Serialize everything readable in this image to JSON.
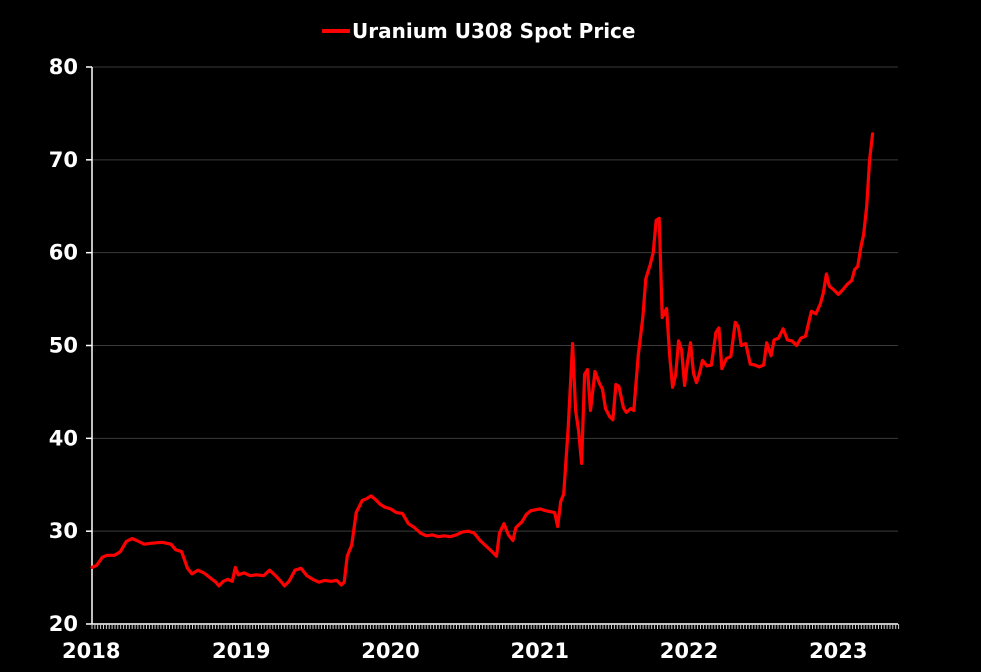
{
  "chart_data": {
    "type": "line",
    "title": "",
    "xlabel": "",
    "ylabel": "",
    "xlim": [
      2018.0,
      2023.4
    ],
    "ylim": [
      20,
      80
    ],
    "yticks": [
      20,
      30,
      40,
      50,
      60,
      70,
      80
    ],
    "xticks": [
      2018,
      2019,
      2020,
      2021,
      2022,
      2023
    ],
    "y_tick_labels": [
      "20",
      "30",
      "40",
      "50",
      "60",
      "70",
      "80"
    ],
    "x_tick_labels": [
      "2018",
      "2019",
      "2020",
      "2021",
      "2022",
      "2023"
    ],
    "grid": true,
    "legend_position": "top-center",
    "series": [
      {
        "name": "Uranium U308 Spot Price",
        "color": "#ff0000",
        "points": [
          [
            2018.0,
            26.1
          ],
          [
            2018.03,
            26.3
          ],
          [
            2018.07,
            27.2
          ],
          [
            2018.1,
            27.4
          ],
          [
            2018.15,
            27.4
          ],
          [
            2018.19,
            27.8
          ],
          [
            2018.23,
            28.9
          ],
          [
            2018.27,
            29.2
          ],
          [
            2018.3,
            29.0
          ],
          [
            2018.35,
            28.6
          ],
          [
            2018.4,
            28.7
          ],
          [
            2018.47,
            28.8
          ],
          [
            2018.53,
            28.6
          ],
          [
            2018.56,
            28.0
          ],
          [
            2018.6,
            27.8
          ],
          [
            2018.64,
            26.0
          ],
          [
            2018.67,
            25.4
          ],
          [
            2018.71,
            25.8
          ],
          [
            2018.75,
            25.5
          ],
          [
            2018.79,
            25.0
          ],
          [
            2018.83,
            24.5
          ],
          [
            2018.85,
            24.1
          ],
          [
            2018.88,
            24.6
          ],
          [
            2018.91,
            24.8
          ],
          [
            2018.94,
            24.6
          ],
          [
            2018.96,
            26.1
          ],
          [
            2018.98,
            25.3
          ],
          [
            2019.02,
            25.5
          ],
          [
            2019.06,
            25.2
          ],
          [
            2019.1,
            25.3
          ],
          [
            2019.15,
            25.2
          ],
          [
            2019.19,
            25.8
          ],
          [
            2019.23,
            25.2
          ],
          [
            2019.27,
            24.5
          ],
          [
            2019.29,
            24.1
          ],
          [
            2019.32,
            24.6
          ],
          [
            2019.36,
            25.8
          ],
          [
            2019.4,
            26.0
          ],
          [
            2019.44,
            25.2
          ],
          [
            2019.48,
            24.8
          ],
          [
            2019.52,
            24.5
          ],
          [
            2019.56,
            24.7
          ],
          [
            2019.6,
            24.6
          ],
          [
            2019.64,
            24.7
          ],
          [
            2019.67,
            24.2
          ],
          [
            2019.69,
            24.5
          ],
          [
            2019.71,
            27.3
          ],
          [
            2019.74,
            28.5
          ],
          [
            2019.77,
            32.0
          ],
          [
            2019.81,
            33.3
          ],
          [
            2019.84,
            33.5
          ],
          [
            2019.87,
            33.8
          ],
          [
            2019.9,
            33.4
          ],
          [
            2019.93,
            32.9
          ],
          [
            2019.96,
            32.6
          ],
          [
            2020.0,
            32.4
          ],
          [
            2020.04,
            32.0
          ],
          [
            2020.08,
            31.9
          ],
          [
            2020.12,
            30.8
          ],
          [
            2020.16,
            30.4
          ],
          [
            2020.2,
            29.8
          ],
          [
            2020.24,
            29.5
          ],
          [
            2020.28,
            29.6
          ],
          [
            2020.32,
            29.4
          ],
          [
            2020.36,
            29.5
          ],
          [
            2020.4,
            29.4
          ],
          [
            2020.44,
            29.6
          ],
          [
            2020.48,
            29.9
          ],
          [
            2020.52,
            30.0
          ],
          [
            2020.56,
            29.8
          ],
          [
            2020.6,
            29.0
          ],
          [
            2020.64,
            28.4
          ],
          [
            2020.68,
            27.8
          ],
          [
            2020.71,
            27.3
          ],
          [
            2020.73,
            29.8
          ],
          [
            2020.76,
            30.8
          ],
          [
            2020.79,
            29.6
          ],
          [
            2020.82,
            29.0
          ],
          [
            2020.84,
            30.4
          ],
          [
            2020.88,
            31.0
          ],
          [
            2020.91,
            31.8
          ],
          [
            2020.94,
            32.2
          ],
          [
            2020.97,
            32.3
          ],
          [
            2021.0,
            32.4
          ],
          [
            2021.04,
            32.2
          ],
          [
            2021.07,
            32.1
          ],
          [
            2021.1,
            32.0
          ],
          [
            2021.12,
            30.5
          ],
          [
            2021.14,
            33.2
          ],
          [
            2021.16,
            34.0
          ],
          [
            2021.19,
            41.0
          ],
          [
            2021.22,
            50.2
          ],
          [
            2021.24,
            43.0
          ],
          [
            2021.26,
            40.8
          ],
          [
            2021.28,
            37.3
          ],
          [
            2021.3,
            46.9
          ],
          [
            2021.32,
            47.4
          ],
          [
            2021.34,
            43.0
          ],
          [
            2021.37,
            47.2
          ],
          [
            2021.4,
            45.9
          ],
          [
            2021.42,
            45.3
          ],
          [
            2021.44,
            43.2
          ],
          [
            2021.47,
            42.3
          ],
          [
            2021.49,
            42.0
          ],
          [
            2021.51,
            45.8
          ],
          [
            2021.53,
            45.6
          ],
          [
            2021.56,
            43.3
          ],
          [
            2021.58,
            42.8
          ],
          [
            2021.61,
            43.2
          ],
          [
            2021.63,
            43.0
          ],
          [
            2021.66,
            49.0
          ],
          [
            2021.69,
            53.0
          ],
          [
            2021.71,
            57.2
          ],
          [
            2021.74,
            58.7
          ],
          [
            2021.76,
            60.0
          ],
          [
            2021.78,
            63.5
          ],
          [
            2021.8,
            63.7
          ],
          [
            2021.82,
            53.0
          ],
          [
            2021.85,
            54.0
          ],
          [
            2021.87,
            49.0
          ],
          [
            2021.89,
            45.5
          ],
          [
            2021.91,
            46.8
          ],
          [
            2021.93,
            50.5
          ],
          [
            2021.95,
            49.5
          ],
          [
            2021.97,
            45.7
          ],
          [
            2021.99,
            48.2
          ],
          [
            2022.01,
            50.3
          ],
          [
            2022.03,
            47.0
          ],
          [
            2022.05,
            46.0
          ],
          [
            2022.07,
            47.0
          ],
          [
            2022.09,
            48.4
          ],
          [
            2022.12,
            47.8
          ],
          [
            2022.15,
            47.9
          ],
          [
            2022.18,
            51.4
          ],
          [
            2022.2,
            51.9
          ],
          [
            2022.22,
            47.5
          ],
          [
            2022.25,
            48.6
          ],
          [
            2022.28,
            48.8
          ],
          [
            2022.31,
            52.5
          ],
          [
            2022.33,
            52.0
          ],
          [
            2022.35,
            50.0
          ],
          [
            2022.38,
            50.2
          ],
          [
            2022.41,
            48.0
          ],
          [
            2022.44,
            47.9
          ],
          [
            2022.47,
            47.7
          ],
          [
            2022.5,
            47.9
          ],
          [
            2022.52,
            50.3
          ],
          [
            2022.55,
            48.9
          ],
          [
            2022.57,
            50.6
          ],
          [
            2022.6,
            50.8
          ],
          [
            2022.63,
            51.8
          ],
          [
            2022.66,
            50.6
          ],
          [
            2022.69,
            50.5
          ],
          [
            2022.72,
            50.0
          ],
          [
            2022.75,
            50.8
          ],
          [
            2022.78,
            51.0
          ],
          [
            2022.82,
            53.7
          ],
          [
            2022.85,
            53.4
          ],
          [
            2022.88,
            54.5
          ],
          [
            2022.9,
            55.7
          ],
          [
            2022.92,
            57.7
          ],
          [
            2022.94,
            56.4
          ],
          [
            2022.97,
            56.0
          ],
          [
            2023.0,
            55.5
          ],
          [
            2023.03,
            56.0
          ],
          [
            2023.06,
            56.6
          ],
          [
            2023.09,
            57.0
          ],
          [
            2023.11,
            58.2
          ],
          [
            2023.13,
            58.5
          ],
          [
            2023.15,
            60.5
          ],
          [
            2023.17,
            62.0
          ],
          [
            2023.19,
            65.0
          ],
          [
            2023.21,
            70.0
          ],
          [
            2023.23,
            72.8
          ]
        ]
      }
    ]
  }
}
